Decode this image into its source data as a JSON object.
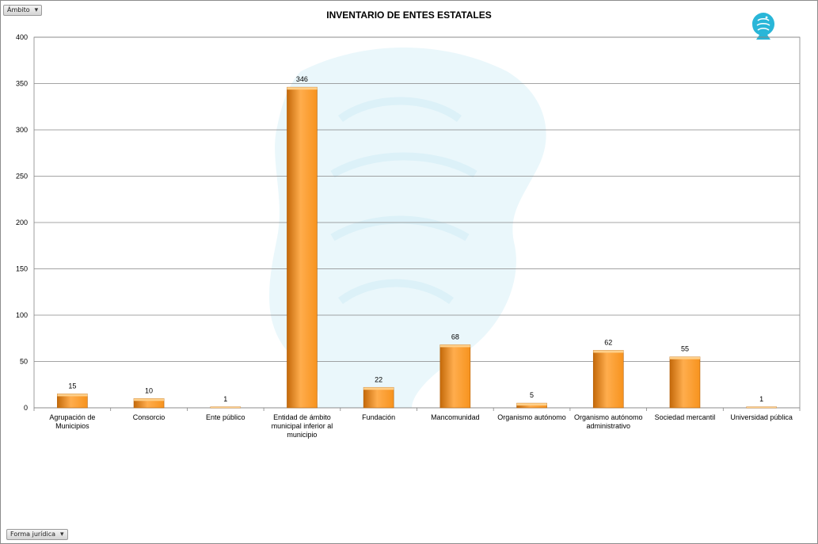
{
  "filters": {
    "top": {
      "label": "Ámbito"
    },
    "bottom": {
      "label": "Forma jurídica"
    }
  },
  "colors": {
    "bar": "#f7931e",
    "bar_dark": "#c4690a",
    "grid": "#868686",
    "watermark": "#e8f6fb",
    "logo": "#29b6d8"
  },
  "logo_icon": "eagle-emblem-icon",
  "chart_data": {
    "type": "bar",
    "title": "INVENTARIO DE ENTES ESTATALES",
    "categories": [
      "Agrupación de Municipios",
      "Consorcio",
      "Ente público",
      "Entidad de ámbito municipal inferior al municipio",
      "Fundación",
      "Mancomunidad",
      "Organismo autónomo",
      "Organismo autónomo administrativo",
      "Sociedad mercantil",
      "Universidad pública"
    ],
    "category_lines": [
      [
        "Agrupación de",
        "Municipios"
      ],
      [
        "Consorcio"
      ],
      [
        "Ente público"
      ],
      [
        "Entidad de ámbito",
        "municipal inferior al",
        "municipio"
      ],
      [
        "Fundación"
      ],
      [
        "Mancomunidad"
      ],
      [
        "Organismo autónomo"
      ],
      [
        "Organismo autónomo",
        "administrativo"
      ],
      [
        "Sociedad mercantil"
      ],
      [
        "Universidad pública"
      ]
    ],
    "values": [
      15,
      10,
      1,
      346,
      22,
      68,
      5,
      62,
      55,
      1
    ],
    "ylim": [
      0,
      400
    ],
    "yticks": [
      0,
      50,
      100,
      150,
      200,
      250,
      300,
      350,
      400
    ],
    "grid": true,
    "legend": "none"
  }
}
